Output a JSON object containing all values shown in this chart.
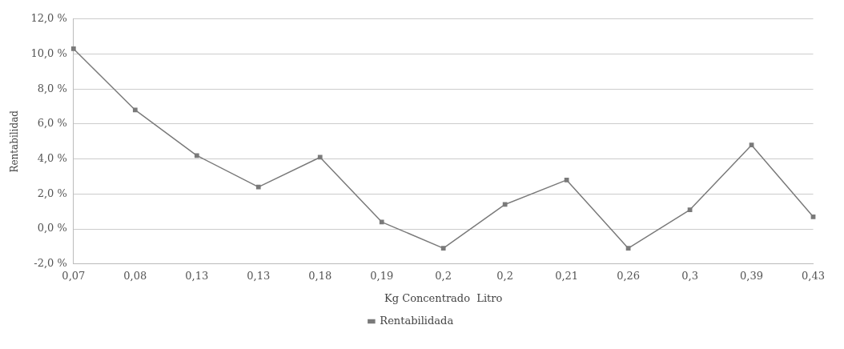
{
  "chart_data": {
    "type": "line",
    "xlabel": "Kg Concentrado  Litro",
    "ylabel": "Rentabilidad",
    "categories": [
      "0,07",
      "0,08",
      "0,13",
      "0,13",
      "0,18",
      "0,19",
      "0,2",
      "0,2",
      "0,21",
      "0,26",
      "0,3",
      "0,39",
      "0,43"
    ],
    "series": [
      {
        "name": "Rentabilidada",
        "color": "#7a7a7a",
        "values": [
          10.3,
          6.8,
          4.2,
          2.4,
          4.1,
          0.4,
          -1.1,
          1.4,
          2.8,
          -1.1,
          1.1,
          4.8,
          0.7
        ]
      }
    ],
    "ylim": [
      -2,
      12
    ],
    "yticks": [
      {
        "value": -2,
        "label": "-2,0 %"
      },
      {
        "value": 0,
        "label": "0,0 %"
      },
      {
        "value": 2,
        "label": "2,0 %"
      },
      {
        "value": 4,
        "label": "4,0 %"
      },
      {
        "value": 6,
        "label": "6,0 %"
      },
      {
        "value": 8,
        "label": "8,0 %"
      },
      {
        "value": 10,
        "label": "10,0 %"
      },
      {
        "value": 12,
        "label": "12,0 %"
      }
    ],
    "grid": "y",
    "legend": "bottom",
    "marker": "square",
    "line_style": "solid"
  }
}
